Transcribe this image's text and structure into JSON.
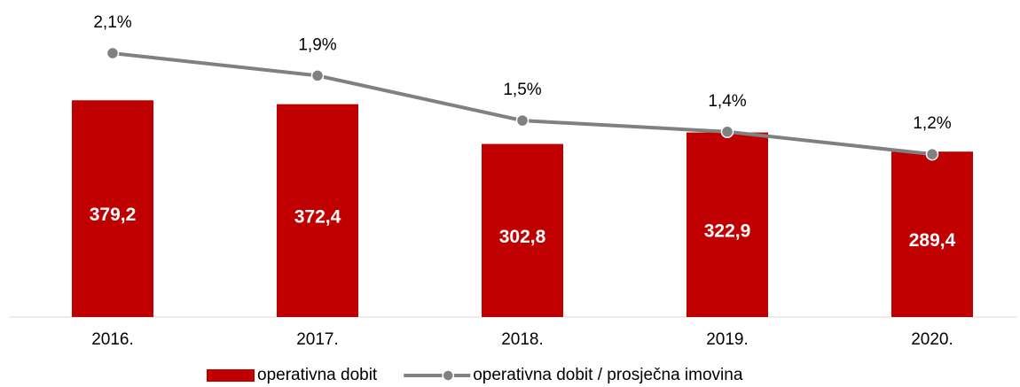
{
  "chart_data": {
    "type": "bar",
    "categories": [
      "2016.",
      "2017.",
      "2018.",
      "2019.",
      "2020."
    ],
    "series": [
      {
        "name": "operativna dobit",
        "type": "bar",
        "color": "#c00000",
        "values": [
          379.2,
          372.4,
          302.8,
          322.9,
          289.4
        ],
        "value_labels": [
          "379,2",
          "372,4",
          "302,8",
          "322,9",
          "289,4"
        ]
      },
      {
        "name": "operativna dobit / prosječna imovina",
        "type": "line",
        "axis": "y2",
        "color": "#808080",
        "values": [
          2.1,
          1.9,
          1.5,
          1.4,
          1.2
        ],
        "value_labels": [
          "2,1%",
          "1,9%",
          "1,5%",
          "1,4%",
          "1,2%"
        ]
      }
    ],
    "ylim": [
      0,
      550
    ],
    "y2lim": [
      -0.25,
      2.55
    ]
  }
}
